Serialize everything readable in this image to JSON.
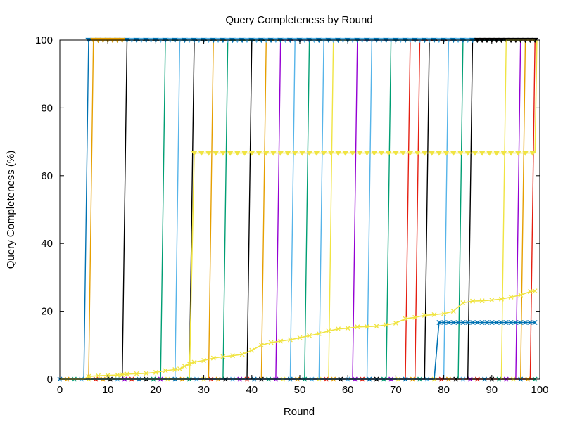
{
  "chart_data": {
    "type": "line",
    "title": "Query Completeness by Round",
    "xlabel": "Round",
    "ylabel": "Query Completeness (%)",
    "xlim": [
      0,
      100
    ],
    "ylim": [
      0,
      100
    ],
    "xticks": [
      0,
      10,
      20,
      30,
      40,
      50,
      60,
      70,
      80,
      90,
      100
    ],
    "yticks": [
      0,
      20,
      40,
      60,
      80,
      100
    ],
    "grid": false,
    "legend": "none",
    "colors": [
      "#0072b2",
      "#e69f00",
      "#000000",
      "#009e73",
      "#56b4e9",
      "#9400d3",
      "#f0e442",
      "#e51e10"
    ],
    "step_series": [
      {
        "color": "#0072b2",
        "rise": [
          5,
          6
        ]
      },
      {
        "color": "#e69f00",
        "rise": [
          6,
          7
        ]
      },
      {
        "color": "#000000",
        "rise": [
          13,
          14
        ]
      },
      {
        "color": "#009e73",
        "rise": [
          21,
          22
        ]
      },
      {
        "color": "#56b4e9",
        "rise": [
          24,
          25
        ]
      },
      {
        "color": "#000000",
        "rise": [
          27,
          28
        ]
      },
      {
        "color": "#e69f00",
        "rise": [
          31,
          32
        ]
      },
      {
        "color": "#009e73",
        "rise": [
          34,
          35
        ]
      },
      {
        "color": "#000000",
        "rise": [
          39,
          40
        ]
      },
      {
        "color": "#e69f00",
        "rise": [
          42,
          43
        ]
      },
      {
        "color": "#9400d3",
        "rise": [
          45,
          46
        ]
      },
      {
        "color": "#56b4e9",
        "rise": [
          48,
          49
        ]
      },
      {
        "color": "#009e73",
        "rise": [
          51,
          52
        ]
      },
      {
        "color": "#56b4e9",
        "rise": [
          54,
          55
        ]
      },
      {
        "color": "#f0e442",
        "rise": [
          56,
          57
        ]
      },
      {
        "color": "#9400d3",
        "rise": [
          61,
          62
        ]
      },
      {
        "color": "#56b4e9",
        "rise": [
          64,
          65
        ]
      },
      {
        "color": "#009e73",
        "rise": [
          68,
          69
        ]
      },
      {
        "color": "#e51e10",
        "rise": [
          72,
          73
        ]
      },
      {
        "color": "#e51e10",
        "rise": [
          74,
          75
        ]
      },
      {
        "color": "#000000",
        "rise": [
          76,
          77
        ]
      },
      {
        "color": "#56b4e9",
        "rise": [
          80,
          81
        ]
      },
      {
        "color": "#009e73",
        "rise": [
          83,
          84
        ]
      },
      {
        "color": "#000000",
        "rise": [
          85,
          86
        ]
      },
      {
        "color": "#9400d3",
        "rise": [
          95,
          96
        ]
      },
      {
        "color": "#e69f00",
        "rise": [
          96,
          97
        ]
      },
      {
        "color": "#e51e10",
        "rise": [
          98,
          99
        ]
      }
    ],
    "yellow_plateau": {
      "color": "#f0e442",
      "x": [
        0,
        27,
        28,
        99
      ],
      "y": [
        0,
        0,
        66.7,
        66.7
      ],
      "drop_x": 99
    },
    "late_yellow": {
      "color": "#f0e442",
      "rise": [
        92,
        93
      ]
    },
    "blue_plateau": {
      "color": "#0072b2",
      "x": [
        0,
        78,
        79,
        99
      ],
      "y": [
        0,
        0,
        16.7,
        16.7
      ]
    },
    "slow_series": {
      "color": "#f0e442",
      "x": [
        0,
        5,
        6,
        8,
        10,
        12,
        13,
        14,
        16,
        18,
        20,
        22,
        24,
        25,
        26,
        27,
        28,
        30,
        32,
        34,
        36,
        38,
        40,
        42,
        44,
        46,
        48,
        50,
        52,
        54,
        56,
        58,
        60,
        62,
        64,
        66,
        68,
        70,
        72,
        74,
        76,
        78,
        80,
        82,
        84,
        86,
        88,
        90,
        92,
        94,
        96,
        98,
        99
      ],
      "y": [
        0,
        0,
        0.8,
        1.0,
        1.1,
        1.2,
        1.3,
        1.5,
        1.6,
        1.7,
        2.0,
        2.5,
        2.8,
        3.0,
        3.8,
        4.5,
        5.0,
        5.5,
        6.2,
        6.6,
        6.9,
        7.3,
        8.5,
        10.0,
        10.8,
        11.2,
        11.6,
        12.2,
        12.8,
        13.4,
        14.2,
        14.8,
        15.0,
        15.4,
        15.5,
        15.6,
        16.0,
        16.5,
        17.8,
        18.2,
        18.8,
        19.0,
        19.3,
        20.0,
        22.5,
        23.0,
        23.1,
        23.3,
        23.6,
        24.2,
        24.8,
        25.8,
        26.0
      ]
    },
    "round_100_markers": {
      "color": "#000000",
      "x": [
        87,
        88,
        89,
        90,
        91,
        92,
        93,
        94,
        95,
        96,
        97,
        98,
        99
      ]
    }
  }
}
